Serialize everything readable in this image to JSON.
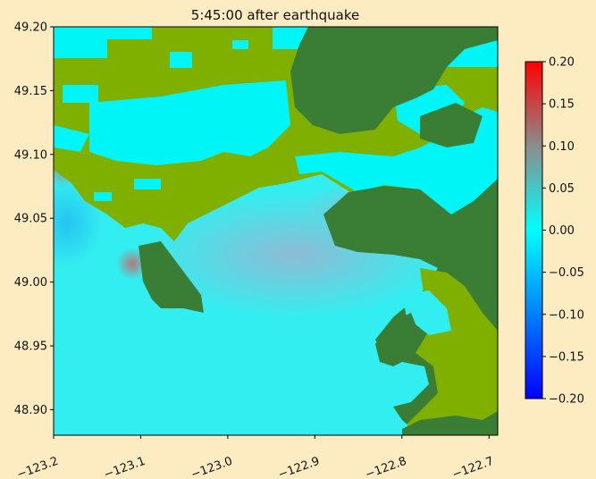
{
  "chart_data": {
    "type": "heatmap",
    "title": "5:45:00 after earthquake",
    "xlabel": "",
    "ylabel": "",
    "xlim": [
      -123.2,
      -122.69
    ],
    "ylim": [
      48.88,
      49.2
    ],
    "xticks": [
      {
        "value": -123.2,
        "label": "−123.2"
      },
      {
        "value": -123.1,
        "label": "−123.1"
      },
      {
        "value": -123.0,
        "label": "−123.0"
      },
      {
        "value": -122.9,
        "label": "−122.9"
      },
      {
        "value": -122.8,
        "label": "−122.8"
      },
      {
        "value": -122.7,
        "label": "−122.7"
      }
    ],
    "yticks": [
      {
        "value": 48.9,
        "label": "48.90"
      },
      {
        "value": 48.95,
        "label": "48.95"
      },
      {
        "value": 49.0,
        "label": "49.00"
      },
      {
        "value": 49.05,
        "label": "49.05"
      },
      {
        "value": 49.1,
        "label": "49.10"
      },
      {
        "value": 49.15,
        "label": "49.15"
      },
      {
        "value": 49.2,
        "label": "49.20"
      }
    ],
    "colorbar": {
      "range": [
        -0.2,
        0.2
      ],
      "ticks": [
        {
          "value": 0.2,
          "label": "0.20"
        },
        {
          "value": 0.15,
          "label": "0.15"
        },
        {
          "value": 0.1,
          "label": "0.10"
        },
        {
          "value": 0.05,
          "label": "0.05"
        },
        {
          "value": 0.0,
          "label": "0.00"
        },
        {
          "value": -0.05,
          "label": "−0.05"
        },
        {
          "value": -0.1,
          "label": "−0.10"
        },
        {
          "value": -0.15,
          "label": "−0.15"
        },
        {
          "value": -0.2,
          "label": "−0.20"
        }
      ],
      "colors": [
        "#0000ff",
        "#00ffff",
        "#ff0000"
      ]
    },
    "grid": false,
    "colors": {
      "water": "#00f6f6",
      "sea": "#33eef0",
      "lowland": "#7fb000",
      "highland": "#3a7d34",
      "background": "#fdebc1"
    }
  }
}
